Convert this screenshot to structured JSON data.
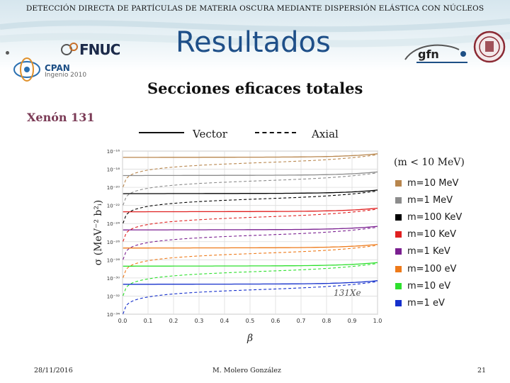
{
  "slide": {
    "header": "DETECCIÓN DIRECTA DE PARTÍCULAS DE MATERIA OSCURA MEDIANTE DISPERSIÓN ELÁSTICA CON NÚCLEOS",
    "title": "Resultados",
    "subtitle": "Secciones eficaces totales",
    "section": "Xenón 131",
    "footer": {
      "date": "28/11/2016",
      "author": "M. Molero González",
      "page": "21"
    },
    "logos": {
      "fnuc": "FNUC",
      "cpan": "CPAN",
      "cpan_sub": "Ingenio 2010",
      "gfn": "gfn"
    }
  },
  "legend": {
    "vector": "Vector",
    "axial": "Axial",
    "mass_note": "(m < 10 MeV)",
    "masses": [
      {
        "label": "m=10 MeV",
        "color": "#b8864d"
      },
      {
        "label": "m=1 MeV",
        "color": "#8c8c8c"
      },
      {
        "label": "m=100 KeV",
        "color": "#000000"
      },
      {
        "label": "m=10 KeV",
        "color": "#e02020"
      },
      {
        "label": "m=1 KeV",
        "color": "#7a1f90"
      },
      {
        "label": "m=100 eV",
        "color": "#ee7a1a"
      },
      {
        "label": "m=10 eV",
        "color": "#2ee02e"
      },
      {
        "label": "m=1 eV",
        "color": "#1530cc"
      }
    ]
  },
  "chart_data": {
    "type": "line",
    "xlabel": "β",
    "ylabel": "σ (MeV⁻² b²ᵢ)",
    "annotation": "131Xe",
    "xlim": [
      0.0,
      1.0
    ],
    "ylim_log10": [
      -34,
      -16
    ],
    "x_ticks": [
      "0.0",
      "0.1",
      "0.2",
      "0.3",
      "0.4",
      "0.5",
      "0.6",
      "0.7",
      "0.8",
      "0.9",
      "1.0"
    ],
    "y_ticks": [
      "10⁻¹⁶",
      "10⁻¹⁸",
      "10⁻²⁰",
      "10⁻²²",
      "10⁻²⁴",
      "10⁻²⁶",
      "10⁻²⁸",
      "10⁻³⁰",
      "10⁻³²",
      "10⁻³⁴"
    ],
    "series": [
      {
        "name": "m=10 MeV",
        "color": "#b8864d",
        "vector_log10": -16.7,
        "axial_log10": -17.0
      },
      {
        "name": "m=1 MeV",
        "color": "#8c8c8c",
        "vector_log10": -18.7,
        "axial_log10": -19.0
      },
      {
        "name": "m=100 KeV",
        "color": "#000000",
        "vector_log10": -20.7,
        "axial_log10": -21.0
      },
      {
        "name": "m=10 KeV",
        "color": "#e02020",
        "vector_log10": -22.7,
        "axial_log10": -23.0
      },
      {
        "name": "m=1 KeV",
        "color": "#7a1f90",
        "vector_log10": -24.7,
        "axial_log10": -25.0
      },
      {
        "name": "m=100 eV",
        "color": "#ee7a1a",
        "vector_log10": -26.7,
        "axial_log10": -27.0
      },
      {
        "name": "m=10 eV",
        "color": "#2ee02e",
        "vector_log10": -28.7,
        "axial_log10": -29.0
      },
      {
        "name": "m=1 eV",
        "color": "#1530cc",
        "vector_log10": -30.7,
        "axial_log10": -31.0
      }
    ]
  }
}
